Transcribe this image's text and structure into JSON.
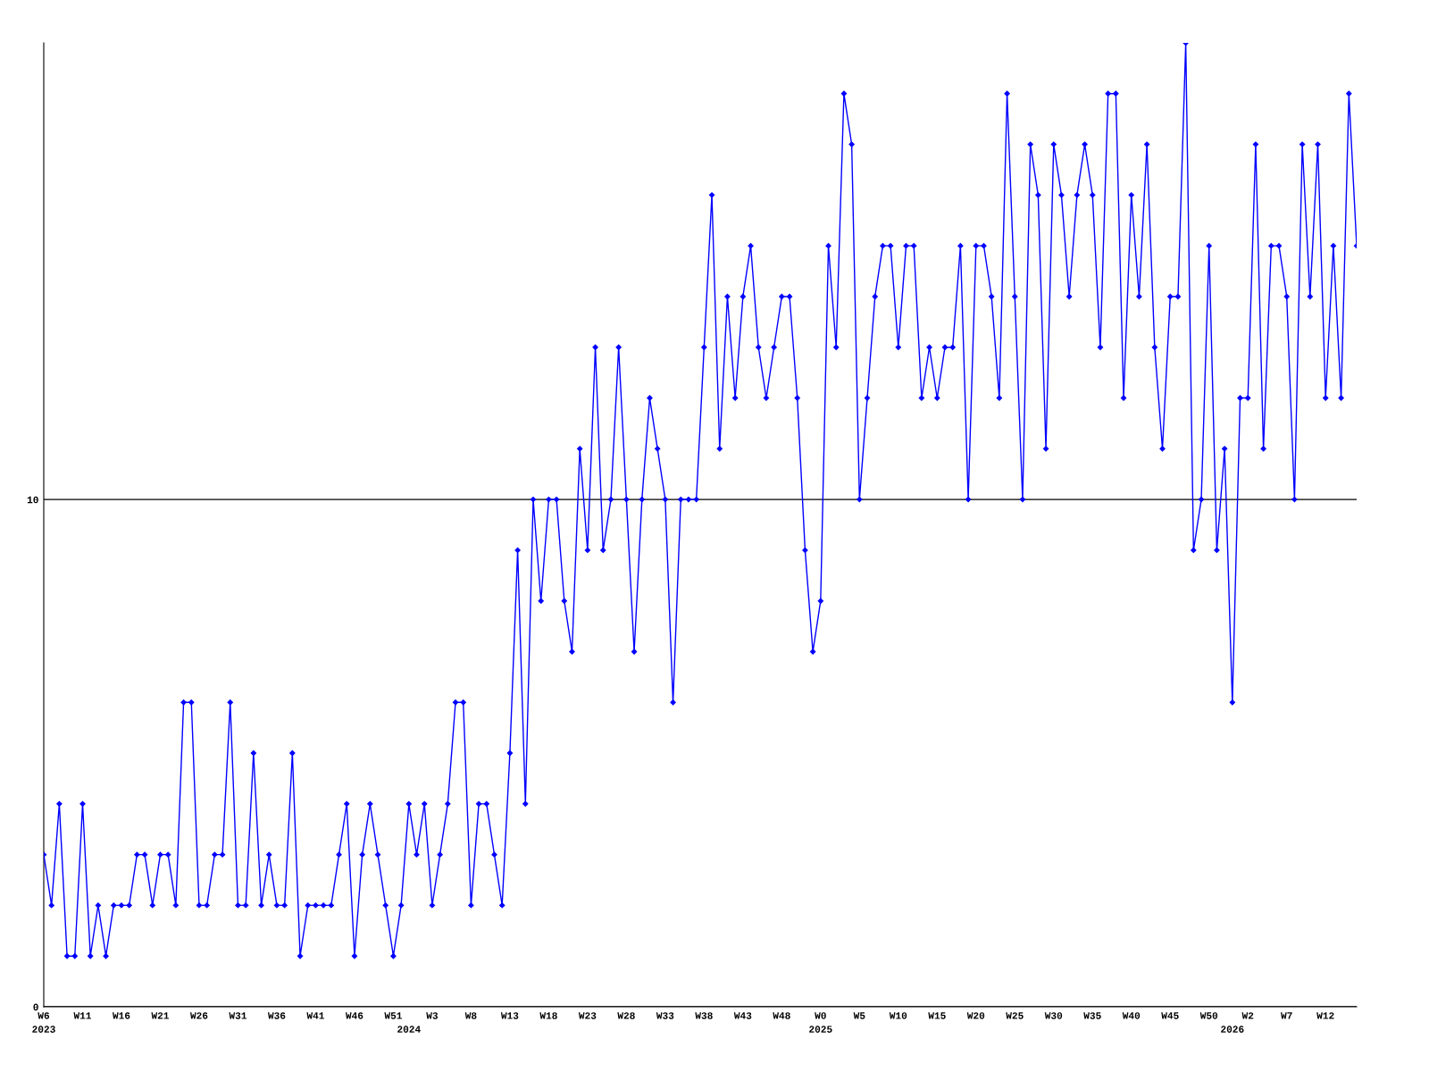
{
  "chart_data": {
    "type": "line",
    "categories": [
      "W6\n2023",
      null,
      null,
      null,
      null,
      "W11",
      null,
      null,
      null,
      null,
      "W16",
      null,
      null,
      null,
      null,
      "W21",
      null,
      null,
      null,
      null,
      "W26",
      null,
      null,
      null,
      null,
      "W31",
      null,
      null,
      null,
      null,
      "W36",
      null,
      null,
      null,
      null,
      "W41",
      null,
      null,
      null,
      null,
      "W46",
      null,
      null,
      null,
      null,
      "W51",
      null,
      "\n2024",
      null,
      null,
      "W3",
      null,
      null,
      null,
      null,
      "W8",
      null,
      null,
      null,
      null,
      "W13",
      null,
      null,
      null,
      null,
      "W18",
      null,
      null,
      null,
      null,
      "W23",
      null,
      null,
      null,
      null,
      "W28",
      null,
      null,
      null,
      null,
      "W33",
      null,
      null,
      null,
      null,
      "W38",
      null,
      null,
      null,
      null,
      "W43",
      null,
      null,
      null,
      null,
      "W48",
      null,
      null,
      null,
      null,
      "W0\n2025",
      null,
      null,
      null,
      null,
      "W5",
      null,
      null,
      null,
      null,
      "W10",
      null,
      null,
      null,
      null,
      "W15",
      null,
      null,
      null,
      null,
      "W20",
      null,
      null,
      null,
      null,
      "W25",
      null,
      null,
      null,
      null,
      "W30",
      null,
      null,
      null,
      null,
      "W35",
      null,
      null,
      null,
      null,
      "W40",
      null,
      null,
      null,
      null,
      "W45",
      null,
      null,
      null,
      null,
      "W50",
      null,
      null,
      "\n2026",
      null,
      "W2",
      null,
      null,
      null,
      null,
      "W7",
      null,
      null,
      null,
      null,
      "W12",
      null,
      null,
      null,
      null
    ],
    "series": [
      {
        "color": "#0000ff",
        "values": [
          3,
          2,
          4,
          1,
          1,
          4,
          1,
          2,
          1,
          2,
          2,
          2,
          3,
          3,
          2,
          3,
          3,
          2,
          6,
          6,
          2,
          2,
          3,
          3,
          6,
          2,
          2,
          5,
          2,
          3,
          2,
          2,
          5,
          1,
          2,
          2,
          2,
          2,
          3,
          4,
          1,
          3,
          4,
          3,
          2,
          1,
          2,
          4,
          3,
          4,
          2,
          3,
          4,
          6,
          6,
          2,
          4,
          4,
          3,
          2,
          5,
          9,
          4,
          10,
          8,
          10,
          10,
          8,
          7,
          11,
          9,
          13,
          9,
          10,
          13,
          10,
          7,
          10,
          12,
          11,
          10,
          6,
          10,
          10,
          10,
          13,
          16,
          11,
          14,
          12,
          14,
          15,
          13,
          12,
          13,
          14,
          14,
          12,
          9,
          7,
          8,
          15,
          13,
          18,
          17,
          10,
          12,
          14,
          15,
          15,
          13,
          15,
          15,
          12,
          13,
          12,
          13,
          13,
          15,
          10,
          15,
          15,
          14,
          12,
          18,
          14,
          10,
          17,
          16,
          11,
          17,
          16,
          14,
          16,
          17,
          16,
          13,
          18,
          18,
          12,
          16,
          14,
          17,
          13,
          11,
          14,
          14,
          19,
          9,
          10,
          15,
          9,
          11,
          6,
          12,
          12,
          17,
          11,
          15,
          15,
          14,
          10,
          17,
          14,
          17,
          12,
          15,
          12,
          18,
          15
        ]
      }
    ],
    "ylim": [
      0,
      19
    ],
    "yticks": [
      0,
      10
    ],
    "grid": "y",
    "marker": "diamond",
    "line_style": "solid",
    "legend": false
  }
}
